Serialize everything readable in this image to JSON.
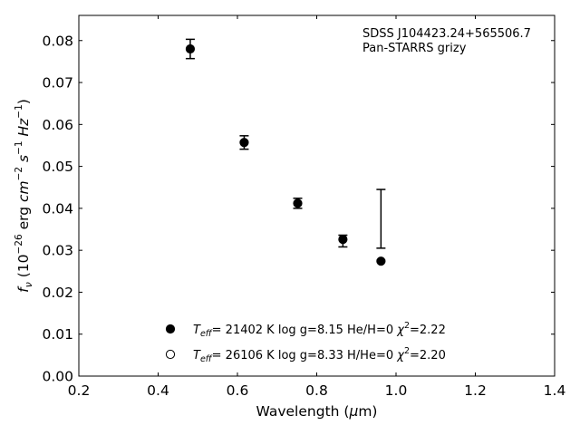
{
  "chart_data": {
    "type": "scatter",
    "xlabel": "Wavelength (μm)",
    "ylabel": "f_ν (10^-26 erg cm^-2 s^-1 Hz^-1)",
    "xlim": [
      0.2,
      1.4
    ],
    "ylim": [
      0.0,
      0.086
    ],
    "xticks": [
      "0.2",
      "0.4",
      "0.6",
      "0.8",
      "1.0",
      "1.2",
      "1.4"
    ],
    "yticks": [
      "0.00",
      "0.01",
      "0.02",
      "0.03",
      "0.04",
      "0.05",
      "0.06",
      "0.07",
      "0.08"
    ],
    "annotation": [
      "SDSS J104423.24+565506.7",
      "Pan-STARRS grizy"
    ],
    "observed": {
      "x": [
        0.481,
        0.617,
        0.752,
        0.866,
        0.962
      ],
      "y": [
        0.078,
        0.0557,
        0.0412,
        0.0322,
        0.0375
      ],
      "yerr_low": [
        0.0023,
        0.0016,
        0.0012,
        0.0014,
        0.007
      ],
      "yerr_high": [
        0.0023,
        0.0016,
        0.0012,
        0.0014,
        0.007
      ]
    },
    "series": [
      {
        "marker": "filled",
        "legend": [
          "= 21402 K",
          "log g=8.15",
          "He/H=0",
          "=2.22"
        ],
        "x": [
          0.481,
          0.617,
          0.752,
          0.866,
          0.962
        ],
        "y": [
          0.078,
          0.0557,
          0.0412,
          0.0326,
          0.0274
        ]
      },
      {
        "marker": "open",
        "legend": [
          "= 26106 K",
          "log g=8.33",
          "H/He=0",
          "=2.20"
        ],
        "x": [],
        "y": []
      }
    ],
    "legend_placement": "lower-center",
    "grid": false
  }
}
